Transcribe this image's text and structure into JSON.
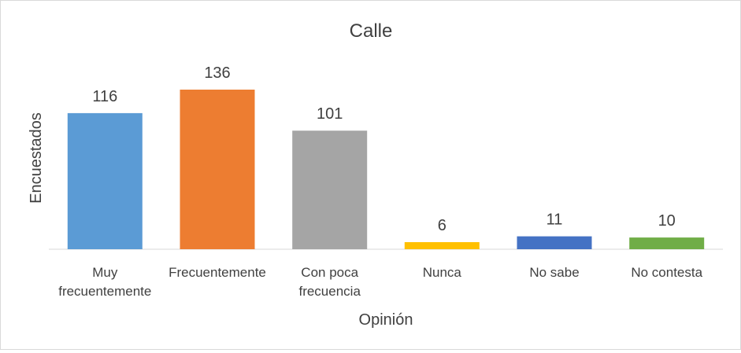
{
  "chart_data": {
    "type": "bar",
    "title": "Calle",
    "xlabel": "Opinión",
    "ylabel": "Encuestados",
    "categories": [
      [
        "Muy",
        "frecuentemente"
      ],
      [
        "Frecuentemente"
      ],
      [
        "Con poca",
        "frecuencia"
      ],
      [
        "Nunca"
      ],
      [
        "No sabe"
      ],
      [
        "No contesta"
      ]
    ],
    "values": [
      116,
      136,
      101,
      6,
      11,
      10
    ],
    "value_labels": [
      "116",
      "136",
      "101",
      "6",
      "11",
      "10"
    ],
    "colors": [
      "#5b9bd5",
      "#ed7d31",
      "#a5a5a5",
      "#ffc000",
      "#4472c4",
      "#70ad47"
    ],
    "ylim": [
      0,
      136
    ],
    "grid": false,
    "legend": "none"
  }
}
